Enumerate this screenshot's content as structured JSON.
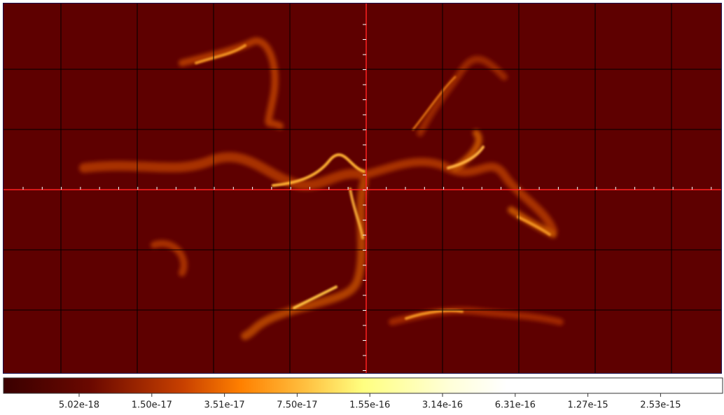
{
  "colorbar": {
    "ticks": [
      "5.02e-18",
      "1.50e-17",
      "3.51e-17",
      "7.50e-17",
      "1.55e-16",
      "3.14e-16",
      "6.31e-16",
      "1.27e-15",
      "2.53e-15"
    ]
  }
}
